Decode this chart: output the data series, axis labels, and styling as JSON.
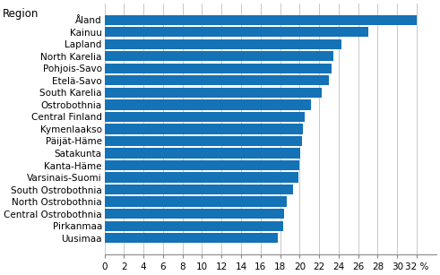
{
  "regions": [
    "Uusimaa",
    "Pirkanmaa",
    "Central Ostrobothnia",
    "North Ostrobothnia",
    "South Ostrobothnia",
    "Varsinais-Suomi",
    "Kanta-Häme",
    "Satakunta",
    "Päijät-Häme",
    "Kymenlaakso",
    "Central Finland",
    "Ostrobothnia",
    "South Karelia",
    "Etelä-Savo",
    "Pohjois-Savo",
    "North Karelia",
    "Lapland",
    "Kainuu",
    "Åland"
  ],
  "values": [
    17.8,
    18.3,
    18.4,
    18.7,
    19.3,
    19.9,
    20.0,
    20.1,
    20.2,
    20.3,
    20.5,
    21.2,
    22.3,
    23.0,
    23.3,
    23.5,
    24.3,
    27.0,
    32.0
  ],
  "bar_color": "#1472b6",
  "region_label": "Region",
  "xlabel": "%",
  "xlim": [
    0,
    34
  ],
  "xticks": [
    0,
    2,
    4,
    6,
    8,
    10,
    12,
    14,
    16,
    18,
    20,
    22,
    24,
    26,
    28,
    30,
    32
  ],
  "grid_color": "#c8c8c8",
  "background_color": "#ffffff",
  "label_fontsize": 8.5,
  "tick_fontsize": 7.5
}
